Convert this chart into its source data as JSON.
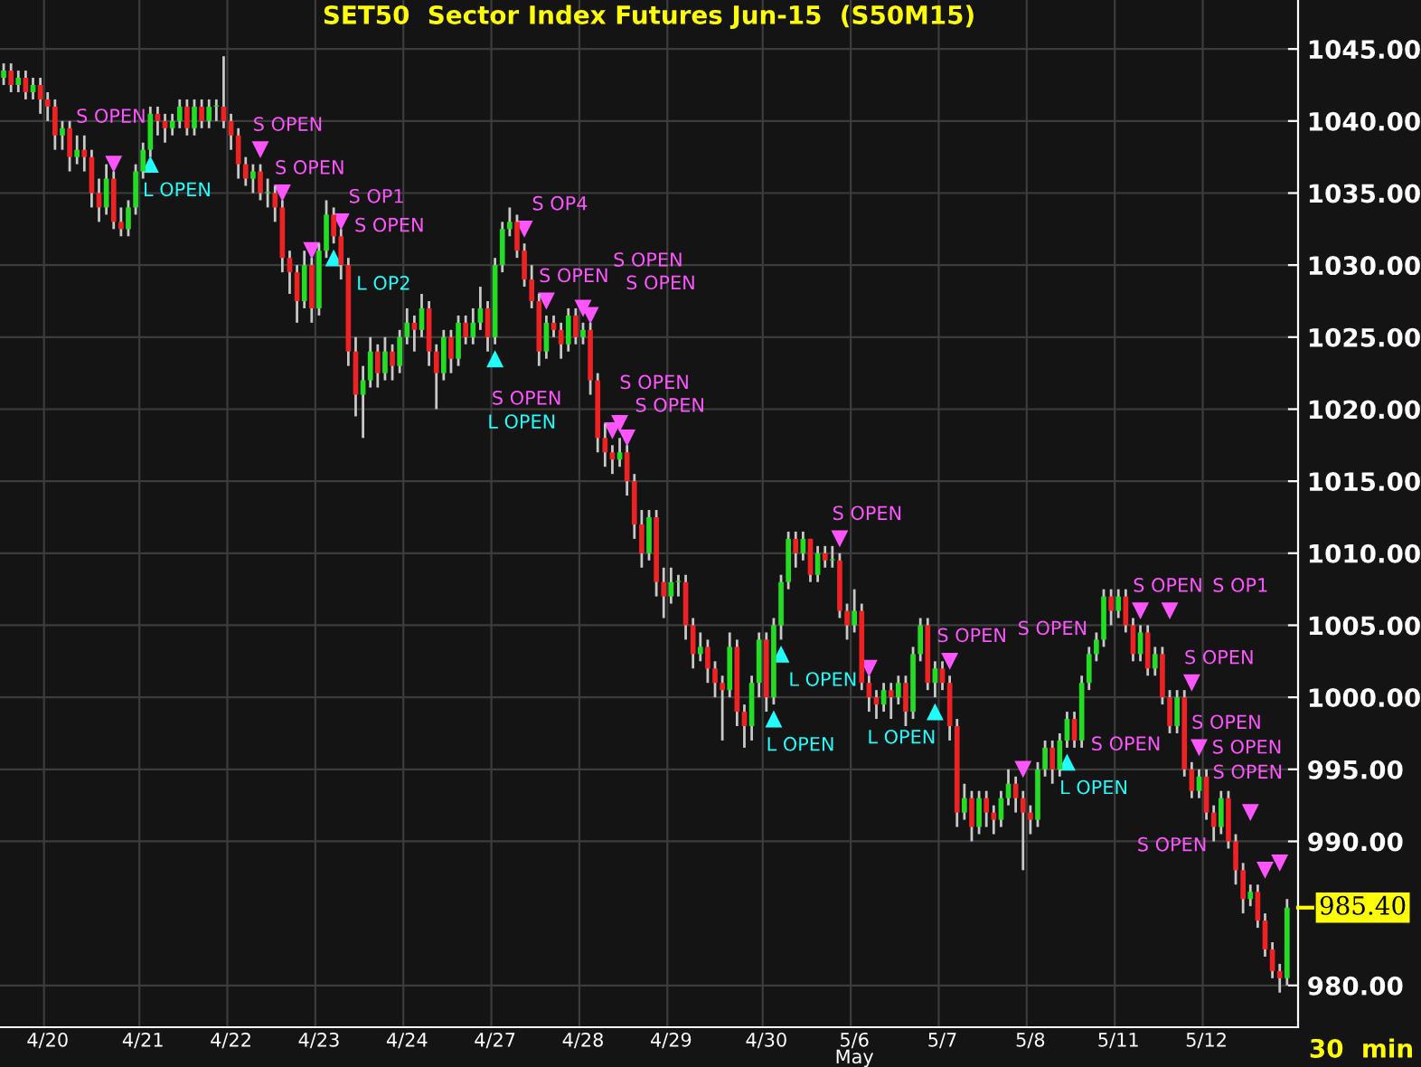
{
  "chart_data": {
    "type": "candlestick",
    "title": "SET50  Sector Index Futures Jun-15  (S50M15)",
    "categories": [
      null,
      null,
      null,
      null,
      null,
      null,
      "4/20",
      null,
      null,
      null,
      null,
      null,
      null,
      null,
      null,
      null,
      null,
      null,
      null,
      "4/21",
      null,
      null,
      null,
      null,
      null,
      null,
      null,
      null,
      null,
      null,
      null,
      "4/22",
      null,
      null,
      null,
      null,
      null,
      null,
      null,
      null,
      null,
      null,
      null,
      "4/23",
      null,
      null,
      null,
      null,
      null,
      null,
      null,
      null,
      null,
      null,
      null,
      "4/24",
      null,
      null,
      null,
      null,
      null,
      null,
      null,
      null,
      null,
      null,
      null,
      "4/27",
      null,
      null,
      null,
      null,
      null,
      null,
      null,
      null,
      null,
      null,
      null,
      "4/28",
      null,
      null,
      null,
      null,
      null,
      null,
      null,
      null,
      null,
      null,
      null,
      "4/29",
      null,
      null,
      null,
      null,
      null,
      null,
      null,
      null,
      null,
      null,
      null,
      null,
      "4/30",
      null,
      null,
      null,
      null,
      null,
      null,
      null,
      null,
      null,
      null,
      null,
      "5/6\nMay",
      null,
      null,
      null,
      null,
      null,
      null,
      null,
      null,
      null,
      null,
      null,
      "5/7",
      null,
      null,
      null,
      null,
      null,
      null,
      null,
      null,
      null,
      null,
      null,
      "5/8",
      null,
      null,
      null,
      null,
      null,
      null,
      null,
      null,
      null,
      null,
      null,
      "5/11",
      null,
      null,
      null,
      null,
      null,
      null,
      null,
      null,
      null,
      null,
      null,
      "5/12",
      null,
      null,
      null,
      null,
      null,
      null,
      null,
      null,
      null,
      null,
      null
    ],
    "ohlc": [
      [
        1043,
        1044,
        1042.5,
        1043.5
      ],
      [
        1043.5,
        1044,
        1042,
        1042.5
      ],
      [
        1042.5,
        1043.5,
        1042,
        1043
      ],
      [
        1043,
        1043.5,
        1041.5,
        1042
      ],
      [
        1042,
        1043,
        1041.5,
        1042.5
      ],
      [
        1042.5,
        1043,
        1040.5,
        1041.5
      ],
      [
        1041.5,
        1042,
        1040,
        1041
      ],
      [
        1041,
        1041.5,
        1038,
        1039
      ],
      [
        1039,
        1040,
        1038,
        1039.5
      ],
      [
        1039.5,
        1040,
        1036.5,
        1037.5
      ],
      [
        1037.5,
        1039,
        1037,
        1038
      ],
      [
        1038,
        1039,
        1036.5,
        1037.5
      ],
      [
        1037.5,
        1038,
        1034,
        1035
      ],
      [
        1035,
        1036,
        1033,
        1034
      ],
      [
        1034,
        1037,
        1033.5,
        1036
      ],
      [
        1036,
        1036.5,
        1032.5,
        1033
      ],
      [
        1033,
        1034,
        1032,
        1032.5
      ],
      [
        1032.5,
        1034.5,
        1032,
        1034
      ],
      [
        1034,
        1037,
        1033.5,
        1036.5
      ],
      [
        1036.5,
        1038.5,
        1036,
        1038
      ],
      [
        1038,
        1041,
        1037.5,
        1040.5
      ],
      [
        1040.5,
        1041,
        1039,
        1040
      ],
      [
        1040,
        1040.5,
        1038.5,
        1039.5
      ],
      [
        1039.5,
        1040.5,
        1039,
        1040
      ],
      [
        1040,
        1041.5,
        1039.5,
        1041
      ],
      [
        1041,
        1041.5,
        1039,
        1039.5
      ],
      [
        1039.5,
        1041.5,
        1039,
        1041
      ],
      [
        1041,
        1041.5,
        1039.5,
        1040
      ],
      [
        1040,
        1041.5,
        1039.5,
        1041
      ],
      [
        1041,
        1041.5,
        1040,
        1041
      ],
      [
        1041,
        1044.5,
        1039.5,
        1040
      ],
      [
        1040,
        1040.5,
        1038,
        1039
      ],
      [
        1039,
        1039.5,
        1036,
        1037
      ],
      [
        1037,
        1037.5,
        1035.5,
        1036
      ],
      [
        1036,
        1037,
        1035,
        1036.5
      ],
      [
        1036.5,
        1037,
        1034.5,
        1035
      ],
      [
        1035,
        1036,
        1034,
        1035
      ],
      [
        1035,
        1035.5,
        1033,
        1034
      ],
      [
        1034,
        1034.5,
        1029.5,
        1030.5
      ],
      [
        1030.5,
        1031,
        1028,
        1029.5
      ],
      [
        1029.5,
        1030,
        1026,
        1027.5
      ],
      [
        1027.5,
        1031,
        1027,
        1030
      ],
      [
        1030,
        1030.5,
        1026,
        1027
      ],
      [
        1027,
        1031.5,
        1026.5,
        1031
      ],
      [
        1031,
        1034.5,
        1030.5,
        1033.5
      ],
      [
        1033.5,
        1034,
        1031.5,
        1032
      ],
      [
        1032,
        1032.5,
        1029,
        1030
      ],
      [
        1030,
        1030.5,
        1023,
        1024
      ],
      [
        1024,
        1025,
        1019.5,
        1021
      ],
      [
        1021,
        1023,
        1018,
        1022
      ],
      [
        1022,
        1025,
        1021.5,
        1024
      ],
      [
        1024,
        1024.5,
        1021.5,
        1022.5
      ],
      [
        1022.5,
        1025,
        1022,
        1024
      ],
      [
        1024,
        1024.5,
        1022,
        1023
      ],
      [
        1023,
        1025.5,
        1022.5,
        1025
      ],
      [
        1025,
        1027,
        1024.5,
        1026
      ],
      [
        1026,
        1026.5,
        1024,
        1025.5
      ],
      [
        1025.5,
        1028,
        1025,
        1027
      ],
      [
        1027,
        1027.5,
        1023,
        1024
      ],
      [
        1024,
        1024.5,
        1020,
        1022.5
      ],
      [
        1022.5,
        1025.5,
        1022,
        1025
      ],
      [
        1025,
        1025.5,
        1022.5,
        1023.5
      ],
      [
        1023.5,
        1026.5,
        1023,
        1026
      ],
      [
        1026,
        1026.5,
        1024.5,
        1025
      ],
      [
        1025,
        1027,
        1024.5,
        1026
      ],
      [
        1026,
        1028.5,
        1025.5,
        1027
      ],
      [
        1027,
        1027.5,
        1024,
        1025
      ],
      [
        1025,
        1030.5,
        1024.5,
        1030
      ],
      [
        1030,
        1033,
        1029.5,
        1032.5
      ],
      [
        1032.5,
        1034,
        1032,
        1033
      ],
      [
        1033,
        1033.5,
        1030.5,
        1031
      ],
      [
        1031,
        1031.5,
        1028.5,
        1029
      ],
      [
        1029,
        1030,
        1027,
        1027.5
      ],
      [
        1027.5,
        1028,
        1023,
        1024
      ],
      [
        1024,
        1026.5,
        1023.5,
        1026
      ],
      [
        1026,
        1026.5,
        1025,
        1025.5
      ],
      [
        1025.5,
        1026,
        1023.5,
        1024.5
      ],
      [
        1024.5,
        1027,
        1024,
        1026.5
      ],
      [
        1026.5,
        1027,
        1024.5,
        1025
      ],
      [
        1025,
        1026,
        1024.5,
        1025.5
      ],
      [
        1025.5,
        1026,
        1021,
        1022
      ],
      [
        1022,
        1022.5,
        1017,
        1018
      ],
      [
        1018,
        1019,
        1016,
        1017
      ],
      [
        1017,
        1017.5,
        1015.5,
        1016.5
      ],
      [
        1016.5,
        1018,
        1016,
        1017
      ],
      [
        1017,
        1017.5,
        1014,
        1015
      ],
      [
        1015,
        1015.5,
        1011,
        1012
      ],
      [
        1012,
        1013,
        1009,
        1010
      ],
      [
        1010,
        1013,
        1009.5,
        1012.5
      ],
      [
        1012.5,
        1013,
        1007,
        1008
      ],
      [
        1008,
        1009,
        1005.5,
        1007
      ],
      [
        1007,
        1009,
        1006.5,
        1008
      ],
      [
        1008,
        1008.5,
        1007,
        1008
      ],
      [
        1008,
        1008.5,
        1004,
        1005
      ],
      [
        1005,
        1005.5,
        1002,
        1003
      ],
      [
        1003,
        1004.5,
        1002.5,
        1003.5
      ],
      [
        1003.5,
        1004,
        1001,
        1002
      ],
      [
        1002,
        1002.5,
        1000,
        1001
      ],
      [
        1001,
        1001.5,
        997,
        1000.5
      ],
      [
        1000.5,
        1004.5,
        1000,
        1003.5
      ],
      [
        1003.5,
        1004,
        998,
        999
      ],
      [
        999,
        999.5,
        996.5,
        998
      ],
      [
        998,
        1001.5,
        997,
        1001
      ],
      [
        1001,
        1004.5,
        1000,
        1004
      ],
      [
        1004,
        1004.5,
        999,
        1000
      ],
      [
        1000,
        1005.5,
        999.5,
        1005
      ],
      [
        1005,
        1008.5,
        1004,
        1008
      ],
      [
        1008,
        1011.5,
        1007.5,
        1011
      ],
      [
        1011,
        1011.5,
        1009,
        1010
      ],
      [
        1010,
        1011.5,
        1009.5,
        1011
      ],
      [
        1011,
        1011,
        1008,
        1008.5
      ],
      [
        1008.5,
        1010.5,
        1008,
        1010
      ],
      [
        1010,
        1010.5,
        1009,
        1009.5
      ],
      [
        1009.5,
        1010.5,
        1009,
        1009.5
      ],
      [
        1009.5,
        1010,
        1005.5,
        1006
      ],
      [
        1006,
        1006.5,
        1004,
        1005
      ],
      [
        1005,
        1007.5,
        1004.5,
        1006
      ],
      [
        1006,
        1006.5,
        1000.5,
        1001
      ],
      [
        1001,
        1001.5,
        999,
        1000
      ],
      [
        1000,
        1000.5,
        998.5,
        999.5
      ],
      [
        999.5,
        1001,
        999,
        1000.5
      ],
      [
        1000.5,
        1001,
        998.5,
        1000
      ],
      [
        1000,
        1001.5,
        999.5,
        1001
      ],
      [
        1001,
        1001.5,
        998,
        999
      ],
      [
        999,
        1003.5,
        998.5,
        1003
      ],
      [
        1003,
        1005.5,
        1002.5,
        1005
      ],
      [
        1005,
        1005.5,
        1000.5,
        1001
      ],
      [
        1001,
        1002.5,
        1000,
        1002
      ],
      [
        1002,
        1002.5,
        1000.5,
        1001
      ],
      [
        1001,
        1001.5,
        997,
        998
      ],
      [
        998,
        998.5,
        991,
        992
      ],
      [
        992,
        994,
        991.5,
        993
      ],
      [
        993,
        993.5,
        990,
        991
      ],
      [
        991,
        993.5,
        990.5,
        993
      ],
      [
        993,
        993.5,
        991,
        992
      ],
      [
        992,
        992.5,
        990.5,
        991.5
      ],
      [
        991.5,
        993.5,
        991,
        993
      ],
      [
        993,
        995,
        992.5,
        994
      ],
      [
        994,
        994.5,
        992,
        993
      ],
      [
        993,
        993.5,
        988,
        992
      ],
      [
        992,
        992.5,
        990.5,
        991.5
      ],
      [
        991.5,
        995.5,
        991,
        995
      ],
      [
        995,
        997,
        994.5,
        996.5
      ],
      [
        996.5,
        997,
        994,
        995
      ],
      [
        995,
        997.5,
        994.5,
        997
      ],
      [
        997,
        999,
        996.5,
        998.5
      ],
      [
        998.5,
        999,
        996.5,
        997
      ],
      [
        997,
        1001.5,
        996.5,
        1001
      ],
      [
        1001,
        1003.5,
        1000.5,
        1003
      ],
      [
        1003,
        1004.5,
        1002.5,
        1004
      ],
      [
        1004,
        1007.5,
        1003.5,
        1007
      ],
      [
        1007,
        1007.5,
        1005,
        1006
      ],
      [
        1006,
        1007.5,
        1005.5,
        1007
      ],
      [
        1007,
        1007.5,
        1004.5,
        1005
      ],
      [
        1005,
        1005.5,
        1002.5,
        1003
      ],
      [
        1003,
        1005,
        1002.5,
        1004.5
      ],
      [
        1004.5,
        1005,
        1001.5,
        1002
      ],
      [
        1002,
        1003.5,
        1001.5,
        1003
      ],
      [
        1003,
        1003.5,
        999.5,
        1000
      ],
      [
        1000,
        1000.5,
        997.5,
        998
      ],
      [
        998,
        1000.5,
        997.5,
        1000
      ],
      [
        1000,
        1000.5,
        994.5,
        995
      ],
      [
        995,
        995.5,
        993,
        993.5
      ],
      [
        993.5,
        995,
        993,
        994.5
      ],
      [
        994.5,
        995,
        991.5,
        992
      ],
      [
        992,
        992.5,
        990,
        991
      ],
      [
        991,
        993.5,
        990.5,
        993
      ],
      [
        993,
        993.5,
        989.5,
        990
      ],
      [
        990,
        990.5,
        987,
        988
      ],
      [
        988,
        988.5,
        985,
        986
      ],
      [
        986,
        987,
        985.5,
        986.5
      ],
      [
        986.5,
        987,
        984,
        984.5
      ],
      [
        984.5,
        985,
        982,
        982.5
      ],
      [
        982.5,
        983,
        980.5,
        981
      ],
      [
        981,
        981.5,
        979.5,
        980.5
      ],
      [
        980.5,
        986,
        980,
        985.4
      ]
    ],
    "series": [
      {
        "type": "scatter",
        "color": "#ff55ff",
        "marker": "triangle_down",
        "values": [
          null,
          null,
          null,
          null,
          null,
          null,
          null,
          null,
          null,
          null,
          null,
          null,
          null,
          null,
          null,
          1037,
          null,
          null,
          null,
          null,
          null,
          null,
          null,
          null,
          null,
          null,
          null,
          null,
          null,
          null,
          null,
          null,
          null,
          null,
          null,
          1038,
          null,
          null,
          1035,
          null,
          null,
          null,
          1031,
          null,
          null,
          null,
          1033,
          null,
          null,
          null,
          null,
          null,
          null,
          null,
          null,
          null,
          null,
          null,
          null,
          null,
          null,
          null,
          null,
          null,
          null,
          null,
          null,
          null,
          null,
          null,
          null,
          1032.5,
          null,
          null,
          1027.5,
          null,
          null,
          null,
          null,
          1027,
          1026.5,
          null,
          null,
          1018.5,
          1019,
          1018,
          null,
          null,
          null,
          null,
          null,
          null,
          null,
          null,
          null,
          null,
          null,
          null,
          null,
          null,
          null,
          null,
          null,
          null,
          null,
          null,
          null,
          null,
          null,
          null,
          null,
          null,
          null,
          null,
          1011,
          null,
          null,
          null,
          1002,
          null,
          null,
          null,
          null,
          null,
          null,
          null,
          null,
          null,
          null,
          1002.5,
          null,
          null,
          null,
          null,
          null,
          null,
          null,
          null,
          null,
          995,
          null,
          null,
          null,
          null,
          null,
          null,
          null,
          null,
          null,
          null,
          null,
          null,
          null,
          null,
          null,
          1006,
          null,
          null,
          null,
          1006,
          null,
          null,
          1001,
          996.5,
          null,
          null,
          null,
          null,
          null,
          null,
          992,
          null,
          988,
          null,
          988.5,
          null
        ]
      },
      {
        "type": "scatter",
        "color": "#22ffff",
        "marker": "triangle",
        "values": [
          null,
          null,
          null,
          null,
          null,
          null,
          null,
          null,
          null,
          null,
          null,
          null,
          null,
          null,
          null,
          null,
          null,
          null,
          null,
          null,
          1037,
          null,
          null,
          null,
          null,
          null,
          null,
          null,
          null,
          null,
          null,
          null,
          null,
          null,
          null,
          null,
          null,
          null,
          null,
          null,
          null,
          null,
          null,
          null,
          null,
          1030.5,
          null,
          null,
          null,
          null,
          null,
          null,
          null,
          null,
          null,
          null,
          null,
          null,
          null,
          null,
          null,
          null,
          null,
          null,
          null,
          null,
          null,
          1023.5,
          null,
          null,
          null,
          null,
          null,
          null,
          null,
          null,
          null,
          null,
          null,
          null,
          null,
          null,
          null,
          null,
          null,
          null,
          null,
          null,
          null,
          null,
          null,
          null,
          null,
          null,
          null,
          null,
          null,
          null,
          null,
          null,
          null,
          null,
          null,
          null,
          null,
          998.5,
          1003,
          null,
          null,
          null,
          null,
          null,
          null,
          null,
          null,
          null,
          null,
          null,
          null,
          null,
          null,
          null,
          null,
          null,
          null,
          null,
          null,
          999,
          null,
          null,
          null,
          null,
          null,
          null,
          null,
          null,
          null,
          null,
          null,
          null,
          null,
          null,
          null,
          null,
          null,
          995.5,
          null,
          null,
          null,
          null,
          null,
          null,
          null,
          null,
          null,
          null,
          null,
          null,
          null,
          null,
          null,
          null,
          null,
          null,
          null,
          null,
          null,
          null,
          null,
          null,
          null,
          null,
          null,
          null,
          null,
          null
        ]
      }
    ],
    "annotations": [
      "S OPEN",
      "S OPEN",
      "S OPEN",
      "S OPEN",
      "S OP1",
      "S OP4",
      "S OPEN",
      "S OPEN",
      "S OPEN",
      "S OPEN",
      "S OPEN",
      "S OPEN",
      "S OPEN",
      "S OPEN",
      "S OPEN",
      "S OPEN",
      "S OPEN",
      "S OP1",
      "S OPEN",
      "S OPEN",
      "S OPEN",
      "S OPEN",
      "S OPEN",
      "L OPEN",
      "L OP2",
      "L OPEN",
      "L OPEN",
      "L OPEN",
      "L OPEN",
      "L OPEN",
      "985.40",
      "30  min"
    ],
    "ylim": [
      977.1,
      1048.4
    ],
    "yticks": [
      {
        "value": 980,
        "label": "980.00"
      },
      {
        "value": 990,
        "label": "990.00"
      },
      {
        "value": 995,
        "label": "995.00"
      },
      {
        "value": 1000,
        "label": "1000.00"
      },
      {
        "value": 1005,
        "label": "1005.00"
      },
      {
        "value": 1010,
        "label": "1010.00"
      },
      {
        "value": 1015,
        "label": "1015.00"
      },
      {
        "value": 1020,
        "label": "1020.00"
      },
      {
        "value": 1025,
        "label": "1025.00"
      },
      {
        "value": 1030,
        "label": "1030.00"
      },
      {
        "value": 1035,
        "label": "1035.00"
      },
      {
        "value": 1040,
        "label": "1040.00"
      },
      {
        "value": 1045,
        "label": "1045.00"
      }
    ],
    "grid": true,
    "legend": false
  }
}
